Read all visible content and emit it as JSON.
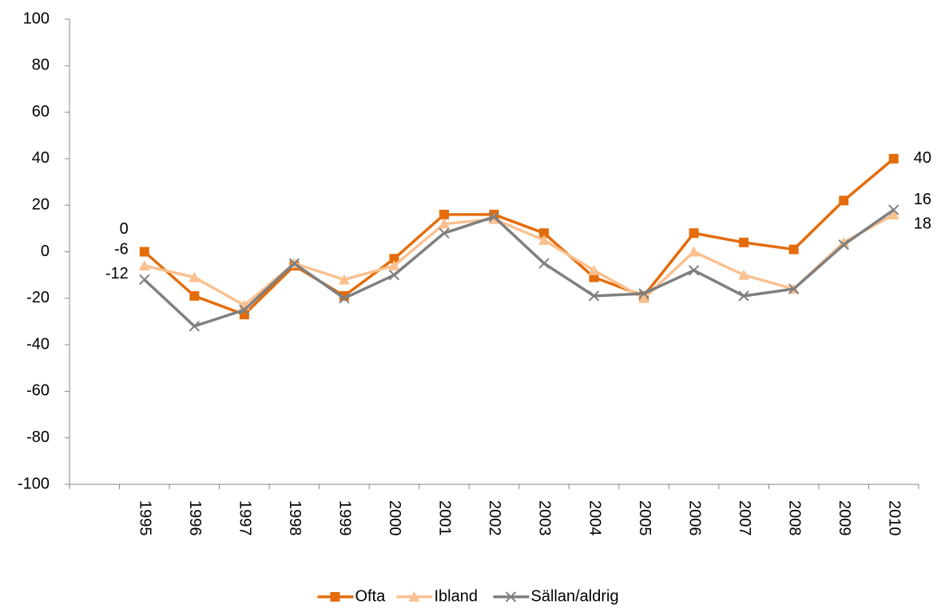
{
  "chart_data": {
    "type": "line",
    "categories": [
      null,
      "1995",
      "1996",
      "1997",
      "1998",
      "1999",
      "2000",
      "2001",
      "2002",
      "2003",
      "2004",
      "2005",
      "2006",
      "2007",
      "2008",
      "2009",
      "2010"
    ],
    "series": [
      {
        "name": "Ofta",
        "color": "#e46c0a",
        "marker": "square",
        "values": [
          null,
          0,
          -19,
          -27,
          -6,
          -19,
          -3,
          16,
          16,
          8,
          -11,
          -19,
          8,
          4,
          1,
          22,
          40
        ]
      },
      {
        "name": "Ibland",
        "color": "#fac090",
        "marker": "triangle",
        "values": [
          null,
          -6,
          -11,
          -23,
          -5,
          -12,
          -6,
          12,
          14,
          5,
          -8,
          -20,
          0,
          -10,
          -16,
          4,
          16
        ]
      },
      {
        "name": "Sällan/aldrig",
        "color": "#7f7f7f",
        "marker": "x",
        "values": [
          null,
          -12,
          -32,
          -25,
          -5,
          -20,
          -10,
          8,
          15,
          -5,
          -19,
          -18,
          -8,
          -19,
          -16,
          3,
          18
        ]
      }
    ],
    "ylim": [
      -100,
      100
    ],
    "yticks": [
      -100,
      -80,
      -60,
      -40,
      -20,
      0,
      20,
      40,
      60,
      80,
      100
    ],
    "legend": "bottom"
  }
}
